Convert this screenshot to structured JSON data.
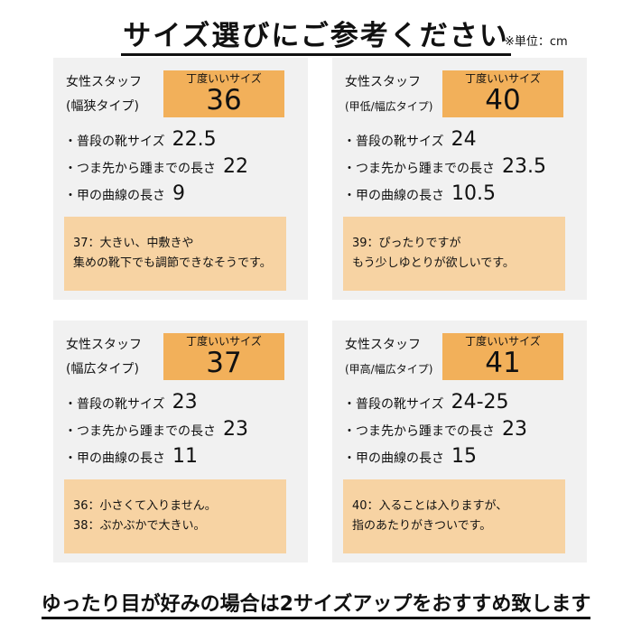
{
  "header": {
    "title": "サイズ選びにご参考ください",
    "unit": "※単位：cm"
  },
  "labels": {
    "staff": "女性スタッフ",
    "ideal_size": "丁度いいサイズ",
    "usual_size": "・普段の靴サイズ",
    "toe_to_heel": "・つま先から踵までの長さ",
    "instep_curve": "・甲の曲線の長さ"
  },
  "cards": [
    {
      "type": "(幅狭タイプ)",
      "size": "36",
      "usual": "22.5",
      "length": "22",
      "instep": "9",
      "note_lines": [
        "37：大きい、中敷きや",
        "集めの靴下でも調節できなそうです。"
      ]
    },
    {
      "type": "(甲低/幅広タイプ)",
      "size": "40",
      "usual": "24",
      "length": "23.5",
      "instep": "10.5",
      "note_lines": [
        "39：ぴったりですが",
        "もう少しゆとりが欲しいです。"
      ]
    },
    {
      "type": "(幅広タイプ)",
      "size": "37",
      "usual": "23",
      "length": "23",
      "instep": "11",
      "note_lines": [
        "36：小さくて入りません。",
        "38：ぶかぶかで大きい。"
      ]
    },
    {
      "type": "(甲高/幅広タイプ)",
      "size": "41",
      "usual": "24-25",
      "length": "23",
      "instep": "15",
      "note_lines": [
        "40：入ることは入りますが、",
        "指のあたりがきついです。"
      ]
    }
  ],
  "footer": {
    "text": "ゆったり目が好みの場合は2サイズアップをおすすめ致します"
  },
  "colors": {
    "card_bg": "#f1f1f1",
    "size_box": "#f2b05a",
    "note_bg": "#f7d3a3"
  }
}
